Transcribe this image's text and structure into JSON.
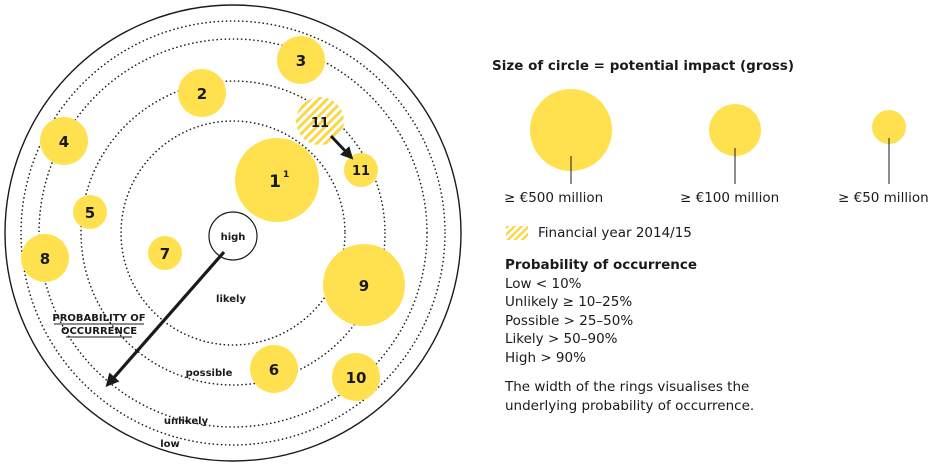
{
  "rings": {
    "high": "high",
    "likely": "likely",
    "possible": "possible",
    "unlikely": "unlikely",
    "low": "low"
  },
  "axis_label_line1": "PROBABILITY OF",
  "axis_label_line2": "OCCURRENCE",
  "risks": [
    {
      "id": "1",
      "num": "1",
      "sup": "1",
      "size": "500m"
    },
    {
      "id": "2",
      "num": "2",
      "size": "100m"
    },
    {
      "id": "3",
      "num": "3",
      "size": "100m"
    },
    {
      "id": "4",
      "num": "4",
      "size": "100m"
    },
    {
      "id": "5",
      "num": "5",
      "size": "50m"
    },
    {
      "id": "6",
      "num": "6",
      "size": "100m"
    },
    {
      "id": "7",
      "num": "7",
      "size": "50m"
    },
    {
      "id": "8",
      "num": "8",
      "size": "100m"
    },
    {
      "id": "9",
      "num": "9",
      "size": "500m"
    },
    {
      "id": "10",
      "num": "10",
      "size": "100m"
    },
    {
      "id": "11-prev",
      "num": "11",
      "size": "100m",
      "previous_year": true
    },
    {
      "id": "11",
      "num": "11",
      "size": "50m"
    }
  ],
  "legend": {
    "title": "Size of circle = potential impact (gross)",
    "sizes": [
      {
        "label": "≥ €500 million"
      },
      {
        "label": "≥ €100 million"
      },
      {
        "label": "≥ €50 million"
      }
    ],
    "financial_year": "Financial year 2014/15",
    "probability_title": "Probability of occurrence",
    "probability_items": [
      "Low < 10%",
      "Unlikely ≥ 10–25%",
      "Possible > 25–50%",
      "Likely > 50–90%",
      "High > 90%"
    ],
    "note": "The width of the rings visualises the underlying probability of occurrence."
  },
  "colors": {
    "yellow": "#FFE14F",
    "hatch": "#F8D84A",
    "ink": "#1a1a1a"
  }
}
